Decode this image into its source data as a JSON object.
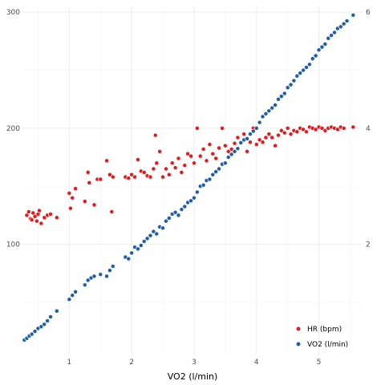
{
  "chart_data": {
    "type": "scatter",
    "xlabel": "VO2 (l/min)",
    "x_ticks": [
      "1",
      "2",
      "3",
      "4",
      "5"
    ],
    "y_left_ticks": [
      "100",
      "200",
      "300"
    ],
    "y_right_ticks": [
      "2",
      "4",
      "6"
    ],
    "xlim": [
      0.25,
      5.7
    ],
    "ylim_left": [
      5,
      305
    ],
    "ylim_right": [
      0.1,
      6.1
    ],
    "grid": true,
    "legend_position": "bottom-right",
    "colors": {
      "hr": "#e41a1c",
      "vo2": "#1f5fa8"
    },
    "series": [
      {
        "name": "HR (bpm)",
        "axis": "left",
        "points": [
          [
            0.32,
            125
          ],
          [
            0.35,
            128
          ],
          [
            0.38,
            122
          ],
          [
            0.4,
            121
          ],
          [
            0.42,
            127
          ],
          [
            0.45,
            124
          ],
          [
            0.48,
            120
          ],
          [
            0.5,
            126
          ],
          [
            0.52,
            129
          ],
          [
            0.55,
            118
          ],
          [
            0.6,
            123
          ],
          [
            0.65,
            125
          ],
          [
            0.7,
            126
          ],
          [
            0.8,
            123
          ],
          [
            1.0,
            144
          ],
          [
            1.02,
            131
          ],
          [
            1.05,
            140
          ],
          [
            1.1,
            148
          ],
          [
            1.25,
            137
          ],
          [
            1.3,
            162
          ],
          [
            1.32,
            153
          ],
          [
            1.4,
            134
          ],
          [
            1.45,
            156
          ],
          [
            1.5,
            156
          ],
          [
            1.6,
            172
          ],
          [
            1.65,
            160
          ],
          [
            1.68,
            128
          ],
          [
            1.7,
            158
          ],
          [
            1.9,
            158
          ],
          [
            1.95,
            157
          ],
          [
            2.0,
            160
          ],
          [
            2.05,
            158
          ],
          [
            2.1,
            173
          ],
          [
            2.15,
            163
          ],
          [
            2.2,
            162
          ],
          [
            2.25,
            159
          ],
          [
            2.3,
            158
          ],
          [
            2.35,
            165
          ],
          [
            2.38,
            194
          ],
          [
            2.4,
            170
          ],
          [
            2.45,
            180
          ],
          [
            2.5,
            158
          ],
          [
            2.55,
            165
          ],
          [
            2.6,
            160
          ],
          [
            2.65,
            170
          ],
          [
            2.7,
            166
          ],
          [
            2.75,
            174
          ],
          [
            2.8,
            162
          ],
          [
            2.85,
            168
          ],
          [
            2.9,
            178
          ],
          [
            2.95,
            176
          ],
          [
            3.0,
            170
          ],
          [
            3.05,
            200
          ],
          [
            3.1,
            176
          ],
          [
            3.15,
            182
          ],
          [
            3.2,
            172
          ],
          [
            3.25,
            186
          ],
          [
            3.3,
            178
          ],
          [
            3.35,
            174
          ],
          [
            3.4,
            183
          ],
          [
            3.45,
            200
          ],
          [
            3.5,
            185
          ],
          [
            3.55,
            180
          ],
          [
            3.6,
            182
          ],
          [
            3.65,
            187
          ],
          [
            3.7,
            192
          ],
          [
            3.75,
            188
          ],
          [
            3.8,
            195
          ],
          [
            3.85,
            180
          ],
          [
            3.9,
            188
          ],
          [
            3.95,
            200
          ],
          [
            4.0,
            186
          ],
          [
            4.05,
            190
          ],
          [
            4.1,
            188
          ],
          [
            4.15,
            192
          ],
          [
            4.2,
            195
          ],
          [
            4.25,
            192
          ],
          [
            4.3,
            185
          ],
          [
            4.35,
            194
          ],
          [
            4.4,
            198
          ],
          [
            4.45,
            196
          ],
          [
            4.5,
            200
          ],
          [
            4.55,
            195
          ],
          [
            4.6,
            198
          ],
          [
            4.65,
            197
          ],
          [
            4.7,
            200
          ],
          [
            4.75,
            199
          ],
          [
            4.8,
            197
          ],
          [
            4.85,
            201
          ],
          [
            4.9,
            200
          ],
          [
            4.95,
            199
          ],
          [
            5.0,
            201
          ],
          [
            5.05,
            200
          ],
          [
            5.1,
            198
          ],
          [
            5.15,
            200
          ],
          [
            5.2,
            201
          ],
          [
            5.25,
            200
          ],
          [
            5.3,
            199
          ],
          [
            5.35,
            201
          ],
          [
            5.4,
            200
          ],
          [
            5.55,
            201
          ]
        ]
      },
      {
        "name": "VO2 (l/min)",
        "axis": "right",
        "points": [
          [
            0.28,
            0.35
          ],
          [
            0.32,
            0.38
          ],
          [
            0.36,
            0.42
          ],
          [
            0.4,
            0.45
          ],
          [
            0.45,
            0.5
          ],
          [
            0.5,
            0.55
          ],
          [
            0.55,
            0.58
          ],
          [
            0.6,
            0.62
          ],
          [
            0.65,
            0.68
          ],
          [
            0.7,
            0.75
          ],
          [
            0.8,
            0.85
          ],
          [
            1.0,
            1.05
          ],
          [
            1.05,
            1.12
          ],
          [
            1.1,
            1.18
          ],
          [
            1.25,
            1.3
          ],
          [
            1.3,
            1.38
          ],
          [
            1.35,
            1.42
          ],
          [
            1.4,
            1.45
          ],
          [
            1.5,
            1.48
          ],
          [
            1.6,
            1.45
          ],
          [
            1.65,
            1.55
          ],
          [
            1.7,
            1.62
          ],
          [
            1.9,
            1.78
          ],
          [
            1.95,
            1.75
          ],
          [
            2.0,
            1.85
          ],
          [
            2.05,
            1.95
          ],
          [
            2.1,
            1.92
          ],
          [
            2.15,
            1.98
          ],
          [
            2.2,
            2.05
          ],
          [
            2.25,
            2.1
          ],
          [
            2.3,
            2.15
          ],
          [
            2.35,
            2.22
          ],
          [
            2.4,
            2.18
          ],
          [
            2.45,
            2.3
          ],
          [
            2.5,
            2.28
          ],
          [
            2.55,
            2.4
          ],
          [
            2.6,
            2.45
          ],
          [
            2.65,
            2.52
          ],
          [
            2.7,
            2.55
          ],
          [
            2.75,
            2.5
          ],
          [
            2.8,
            2.6
          ],
          [
            2.85,
            2.65
          ],
          [
            2.9,
            2.72
          ],
          [
            2.95,
            2.75
          ],
          [
            3.0,
            2.8
          ],
          [
            3.05,
            2.9
          ],
          [
            3.1,
            3.0
          ],
          [
            3.15,
            3.02
          ],
          [
            3.2,
            3.1
          ],
          [
            3.25,
            3.12
          ],
          [
            3.3,
            3.2
          ],
          [
            3.35,
            3.25
          ],
          [
            3.4,
            3.3
          ],
          [
            3.45,
            3.38
          ],
          [
            3.5,
            3.4
          ],
          [
            3.55,
            3.5
          ],
          [
            3.6,
            3.55
          ],
          [
            3.65,
            3.6
          ],
          [
            3.7,
            3.65
          ],
          [
            3.75,
            3.75
          ],
          [
            3.8,
            3.8
          ],
          [
            3.85,
            3.82
          ],
          [
            3.9,
            3.9
          ],
          [
            3.95,
            3.95
          ],
          [
            4.0,
            4.0
          ],
          [
            4.05,
            4.1
          ],
          [
            4.1,
            4.2
          ],
          [
            4.15,
            4.25
          ],
          [
            4.2,
            4.3
          ],
          [
            4.25,
            4.35
          ],
          [
            4.3,
            4.4
          ],
          [
            4.35,
            4.5
          ],
          [
            4.4,
            4.55
          ],
          [
            4.45,
            4.6
          ],
          [
            4.5,
            4.7
          ],
          [
            4.55,
            4.75
          ],
          [
            4.6,
            4.82
          ],
          [
            4.65,
            4.9
          ],
          [
            4.7,
            4.95
          ],
          [
            4.75,
            5.0
          ],
          [
            4.8,
            5.05
          ],
          [
            4.85,
            5.1
          ],
          [
            4.9,
            5.2
          ],
          [
            4.95,
            5.25
          ],
          [
            5.0,
            5.35
          ],
          [
            5.05,
            5.4
          ],
          [
            5.1,
            5.45
          ],
          [
            5.15,
            5.55
          ],
          [
            5.2,
            5.6
          ],
          [
            5.25,
            5.65
          ],
          [
            5.3,
            5.72
          ],
          [
            5.35,
            5.75
          ],
          [
            5.4,
            5.8
          ],
          [
            5.45,
            5.85
          ],
          [
            5.55,
            5.95
          ]
        ]
      }
    ]
  }
}
